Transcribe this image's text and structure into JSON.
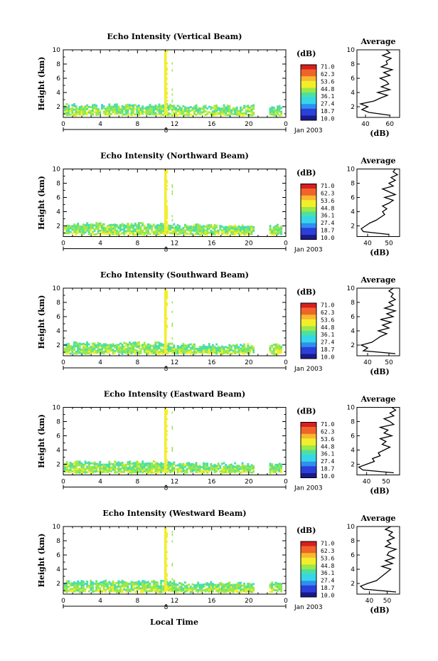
{
  "figure": {
    "colorbar_unit": "(dB)",
    "colorbar_ticks": [
      "71.0",
      "62.3",
      "53.6",
      "44.8",
      "36.1",
      "27.4",
      "18.7",
      "10.0"
    ],
    "colorbar_range": [
      10.0,
      71.0
    ],
    "colormap": [
      "#1a1a8c",
      "#2a40d8",
      "#2f8ff0",
      "#35d6e8",
      "#4ee0a0",
      "#9ae84a",
      "#f2ee2a",
      "#f8b830",
      "#f06428",
      "#d81e20"
    ],
    "x_ticks": [
      "0",
      "4",
      "8",
      "12",
      "16",
      "20",
      "0"
    ],
    "date_tick_label": "8",
    "date_label": "Jan 2003",
    "x_axis_label": "Local Time",
    "y_label": "Height (km)",
    "y_ticks": [
      "2",
      "4",
      "6",
      "8",
      "10"
    ],
    "avg_title": "Average",
    "avg_unit": "(dB)"
  },
  "chart_data": [
    {
      "type": "heatmap",
      "title": "Echo Intensity (Vertical Beam)",
      "ylabel": "Height (km)",
      "ylim": [
        0.5,
        10
      ],
      "xlim": [
        0,
        24
      ],
      "units": "dB",
      "profile": {
        "xlabel": "(dB)",
        "x_ticks": [
          "40",
          "60"
        ],
        "xlim": [
          33,
          68
        ],
        "heights": [
          0.8,
          1.2,
          1.6,
          2.0,
          2.4,
          2.8,
          3.2,
          3.6,
          4.0,
          4.4,
          4.8,
          5.2,
          5.6,
          6.0,
          6.4,
          6.8,
          7.2,
          7.6,
          8.0,
          8.4,
          8.8,
          9.2,
          9.6,
          10.0
        ],
        "values": [
          60,
          43,
          37,
          42,
          36,
          47,
          52,
          58,
          50,
          60,
          53,
          59,
          57,
          52,
          60,
          55,
          62,
          53,
          58,
          57,
          61,
          54,
          60,
          57
        ]
      }
    },
    {
      "type": "heatmap",
      "title": "Echo Intensity (Northward Beam)",
      "ylabel": "Height (km)",
      "ylim": [
        0.5,
        10
      ],
      "xlim": [
        0,
        24
      ],
      "units": "dB",
      "profile": {
        "xlabel": "(dB)",
        "x_ticks": [
          "40",
          "50"
        ],
        "xlim": [
          35,
          55
        ],
        "heights": [
          0.8,
          1.2,
          1.6,
          2.0,
          2.4,
          2.8,
          3.2,
          3.6,
          4.0,
          4.4,
          4.8,
          5.2,
          5.6,
          6.0,
          6.4,
          6.8,
          7.2,
          7.6,
          8.0,
          8.4,
          8.8,
          9.2,
          9.6,
          10.0
        ],
        "values": [
          50,
          38,
          37,
          39,
          41,
          44,
          46,
          48,
          47,
          49,
          47,
          50,
          52,
          48,
          53,
          50,
          47,
          52,
          50,
          53,
          51,
          54,
          52,
          53
        ]
      }
    },
    {
      "type": "heatmap",
      "title": "Echo Intensity (Southward Beam)",
      "ylabel": "Height (km)",
      "ylim": [
        0.5,
        10
      ],
      "xlim": [
        0,
        24
      ],
      "units": "dB",
      "profile": {
        "xlabel": "(dB)",
        "x_ticks": [
          "40",
          "50"
        ],
        "xlim": [
          35,
          55
        ],
        "heights": [
          0.8,
          1.2,
          1.6,
          2.0,
          2.4,
          2.8,
          3.2,
          3.6,
          4.0,
          4.4,
          4.8,
          5.2,
          5.6,
          6.0,
          6.4,
          6.8,
          7.2,
          7.6,
          8.0,
          8.4,
          8.8,
          9.2,
          9.6,
          10.0
        ],
        "values": [
          53,
          38,
          40,
          37,
          42,
          44,
          46,
          49,
          45,
          50,
          47,
          51,
          46,
          52,
          49,
          53,
          48,
          52,
          50,
          53,
          51,
          52,
          50,
          52
        ]
      }
    },
    {
      "type": "heatmap",
      "title": "Echo Intensity (Eastward Beam)",
      "ylabel": "Height (km)",
      "ylim": [
        0.5,
        10
      ],
      "xlim": [
        0,
        24
      ],
      "units": "dB",
      "profile": {
        "xlabel": "(dB)",
        "x_ticks": [
          "40",
          "50"
        ],
        "xlim": [
          35,
          57
        ],
        "heights": [
          0.8,
          1.2,
          1.6,
          2.0,
          2.4,
          2.8,
          3.2,
          3.6,
          4.0,
          4.4,
          4.8,
          5.2,
          5.6,
          6.0,
          6.4,
          6.8,
          7.2,
          7.6,
          8.0,
          8.4,
          8.8,
          9.2,
          9.6,
          10.0
        ],
        "values": [
          54,
          38,
          36,
          40,
          44,
          43,
          47,
          46,
          49,
          52,
          48,
          50,
          47,
          53,
          49,
          51,
          47,
          54,
          52,
          49,
          54,
          52,
          55,
          53
        ]
      }
    },
    {
      "type": "heatmap",
      "title": "Echo Intensity (Westward Beam)",
      "ylabel": "Height (km)",
      "ylim": [
        0.5,
        10
      ],
      "xlim": [
        0,
        24
      ],
      "units": "dB",
      "profile": {
        "xlabel": "(dB)",
        "x_ticks": [
          "40",
          "50"
        ],
        "xlim": [
          33,
          57
        ],
        "heights": [
          0.8,
          1.2,
          1.6,
          2.0,
          2.4,
          2.8,
          3.2,
          3.6,
          4.0,
          4.4,
          4.8,
          5.2,
          5.6,
          6.0,
          6.4,
          6.8,
          7.2,
          7.6,
          8.0,
          8.4,
          8.8,
          9.2,
          9.6,
          10.0
        ],
        "values": [
          55,
          37,
          35,
          39,
          44,
          46,
          48,
          50,
          52,
          47,
          53,
          49,
          54,
          50,
          51,
          55,
          49,
          52,
          50,
          54,
          51,
          53,
          49,
          52
        ]
      }
    }
  ]
}
